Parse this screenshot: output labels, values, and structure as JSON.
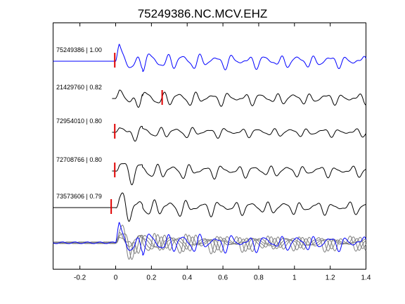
{
  "chart_data": {
    "type": "line",
    "title": "75249386.NC.MCV.EHZ",
    "xlabel": "",
    "ylabel": "",
    "xlim": [
      -0.35,
      1.4
    ],
    "xticks": [
      {
        "value": -0.2,
        "label": "-0.2"
      },
      {
        "value": 0,
        "label": "0"
      },
      {
        "value": 0.2,
        "label": "0.2"
      },
      {
        "value": 0.4,
        "label": "0.4"
      },
      {
        "value": 0.6,
        "label": "0.6"
      },
      {
        "value": 0.8,
        "label": "0.8"
      },
      {
        "value": 1,
        "label": "1"
      },
      {
        "value": 1.2,
        "label": "1.2"
      },
      {
        "value": 1.4,
        "label": "1.4"
      }
    ],
    "grid": false,
    "colors": {
      "reference": "#0000ff",
      "trace": "#000000",
      "overlay": "#808080",
      "pick": "#e00000"
    },
    "series": [
      {
        "name": "75249386 | 1.00",
        "pick": -0.005,
        "start": -0.35,
        "color": "#0000ff"
      },
      {
        "name": "21429760 | 0.82",
        "pick": 0.26,
        "start": -0.02,
        "color": "#000000"
      },
      {
        "name": "72954010 | 0.80",
        "pick": -0.005,
        "start": -0.02,
        "color": "#000000"
      },
      {
        "name": "72708766 | 0.80",
        "pick": -0.005,
        "start": -0.02,
        "color": "#000000"
      },
      {
        "name": "73573606 | 0.79",
        "pick": -0.025,
        "start": -0.35,
        "color": "#000000"
      }
    ],
    "overlay": {
      "name": "",
      "description_visible": false
    }
  }
}
